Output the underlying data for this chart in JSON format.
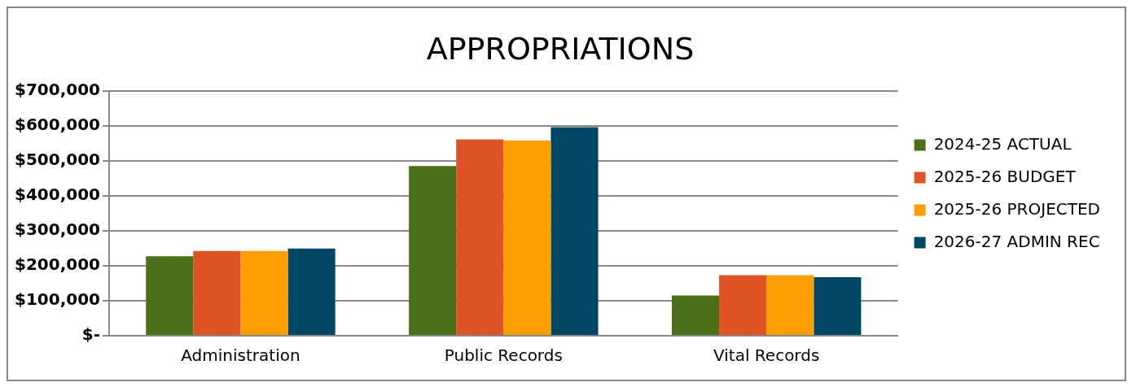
{
  "chart_data": {
    "type": "bar",
    "title": "APPROPRIATIONS",
    "categories": [
      "Administration",
      "Public Records",
      "Vital Records"
    ],
    "series": [
      {
        "name": "2024-25 ACTUAL",
        "color": "#4a7119",
        "values": [
          227000,
          485000,
          115000
        ]
      },
      {
        "name": "2025-26 BUDGET",
        "color": "#e05326",
        "values": [
          242000,
          561000,
          173000
        ]
      },
      {
        "name": "2025-26 PROJECTED",
        "color": "#fd9e02",
        "values": [
          242000,
          558000,
          173000
        ]
      },
      {
        "name": "2026-27 ADMIN REC",
        "color": "#004665",
        "values": [
          249000,
          596000,
          167000
        ]
      }
    ],
    "ylim": [
      0,
      700000
    ],
    "yticks": [
      {
        "value": 0,
        "label": "$-"
      },
      {
        "value": 100000,
        "label": "$100,000"
      },
      {
        "value": 200000,
        "label": "$200,000"
      },
      {
        "value": 300000,
        "label": "$300,000"
      },
      {
        "value": 400000,
        "label": "$400,000"
      },
      {
        "value": 500000,
        "label": "$500,000"
      },
      {
        "value": 600000,
        "label": "$600,000"
      },
      {
        "value": 700000,
        "label": "$700,000"
      }
    ],
    "grid": "y",
    "legend": "right"
  }
}
